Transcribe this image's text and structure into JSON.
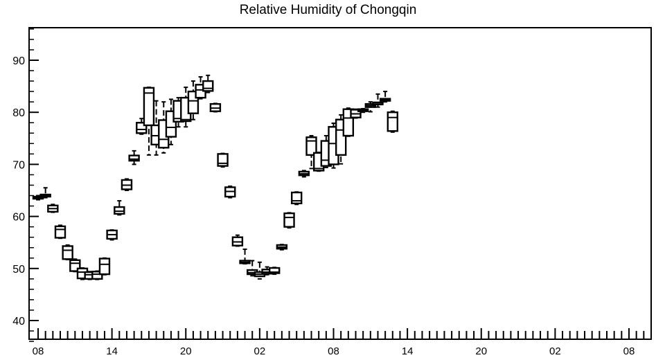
{
  "chart_data": {
    "type": "boxplot",
    "title": "Relative Humidity of Chongqin",
    "xlabel": "",
    "ylabel": "",
    "ylim": [
      36,
      96
    ],
    "xlim": [
      0,
      84
    ],
    "y_ticks": [
      40,
      50,
      60,
      70,
      80,
      90
    ],
    "x_ticks": [
      {
        "x": 1,
        "label": "08"
      },
      {
        "x": 11,
        "label": "14"
      },
      {
        "x": 21,
        "label": "20"
      },
      {
        "x": 31,
        "label": "02"
      },
      {
        "x": 41,
        "label": "08"
      },
      {
        "x": 51,
        "label": "14"
      },
      {
        "x": 61,
        "label": "20"
      },
      {
        "x": 71,
        "label": "02"
      },
      {
        "x": 81,
        "label": "08"
      }
    ],
    "grid": false,
    "series": [
      {
        "boxes": [
          {
            "x": 1,
            "min": 63.2,
            "q1": 63.4,
            "median": 63.6,
            "q3": 63.8,
            "max": 64.0
          },
          {
            "x": 2,
            "min": 63.6,
            "q1": 63.8,
            "median": 64.0,
            "q3": 64.2,
            "max": 65.5
          },
          {
            "x": 3,
            "min": 60.8,
            "q1": 60.9,
            "median": 61.5,
            "q3": 62.1,
            "max": 62.3
          },
          {
            "x": 4,
            "min": 55.8,
            "q1": 55.9,
            "median": 57.5,
            "q3": 58.1,
            "max": 58.3
          },
          {
            "x": 5,
            "min": 51.7,
            "q1": 51.8,
            "median": 53.5,
            "q3": 54.3,
            "max": 54.5
          },
          {
            "x": 6,
            "min": 49.4,
            "q1": 49.5,
            "median": 51.0,
            "q3": 51.6,
            "max": 51.8
          },
          {
            "x": 7,
            "min": 47.9,
            "q1": 48.1,
            "median": 49.3,
            "q3": 50.0,
            "max": 50.1
          },
          {
            "x": 8,
            "min": 47.9,
            "q1": 48.0,
            "median": 48.8,
            "q3": 49.3,
            "max": 49.4
          },
          {
            "x": 9,
            "min": 47.9,
            "q1": 48.0,
            "median": 48.9,
            "q3": 49.4,
            "max": 49.5
          },
          {
            "x": 10,
            "min": 48.8,
            "q1": 48.9,
            "median": 50.8,
            "q3": 51.9,
            "max": 52.0
          },
          {
            "x": 11,
            "min": 55.5,
            "q1": 55.7,
            "median": 56.5,
            "q3": 57.3,
            "max": 57.4
          },
          {
            "x": 12,
            "min": 60.3,
            "q1": 60.5,
            "median": 61.0,
            "q3": 61.8,
            "max": 63.0
          },
          {
            "x": 13,
            "min": 65.0,
            "q1": 65.2,
            "median": 66.0,
            "q3": 67.0,
            "max": 67.2
          },
          {
            "x": 14,
            "min": 70.0,
            "q1": 70.7,
            "median": 71.0,
            "q3": 71.7,
            "max": 72.6
          },
          {
            "x": 15,
            "min": 75.8,
            "q1": 76.0,
            "median": 76.7,
            "q3": 78.0,
            "max": 78.8
          },
          {
            "x": 16,
            "min": 71.8,
            "q1": 77.5,
            "median": 83.7,
            "q3": 84.7,
            "max": 84.8
          },
          {
            "x": 17,
            "min": 71.8,
            "q1": 73.8,
            "median": 75.5,
            "q3": 77.5,
            "max": 82.2
          },
          {
            "x": 18,
            "min": 72.2,
            "q1": 73.2,
            "median": 74.8,
            "q3": 78.5,
            "max": 82.0
          },
          {
            "x": 19,
            "min": 73.8,
            "q1": 75.3,
            "median": 77.1,
            "q3": 80.2,
            "max": 82.5
          },
          {
            "x": 20,
            "min": 77.2,
            "q1": 78.2,
            "median": 78.8,
            "q3": 82.2,
            "max": 82.8
          },
          {
            "x": 21,
            "min": 77.2,
            "q1": 78.3,
            "median": 78.6,
            "q3": 82.8,
            "max": 84.8
          },
          {
            "x": 22,
            "min": 78.6,
            "q1": 79.8,
            "median": 82.2,
            "q3": 84.0,
            "max": 86.0
          },
          {
            "x": 23,
            "min": 82.6,
            "q1": 82.8,
            "median": 84.3,
            "q3": 85.3,
            "max": 86.8
          },
          {
            "x": 24,
            "min": 83.8,
            "q1": 84.1,
            "median": 84.6,
            "q3": 86.0,
            "max": 87.1
          },
          {
            "x": 25,
            "min": 80.1,
            "q1": 80.2,
            "median": 80.8,
            "q3": 81.6,
            "max": 81.7
          },
          {
            "x": 26,
            "min": 69.5,
            "q1": 69.7,
            "median": 70.2,
            "q3": 72.0,
            "max": 72.1
          },
          {
            "x": 27,
            "min": 63.6,
            "q1": 63.8,
            "median": 64.8,
            "q3": 65.6,
            "max": 65.8
          },
          {
            "x": 28,
            "min": 54.3,
            "q1": 54.4,
            "median": 55.1,
            "q3": 56.0,
            "max": 56.4
          },
          {
            "x": 29,
            "min": 50.9,
            "q1": 51.0,
            "median": 51.2,
            "q3": 51.5,
            "max": 53.7
          },
          {
            "x": 30,
            "min": 48.6,
            "q1": 48.9,
            "median": 49.2,
            "q3": 49.7,
            "max": 51.5
          },
          {
            "x": 31,
            "min": 48.0,
            "q1": 48.5,
            "median": 48.9,
            "q3": 49.3,
            "max": 51.2
          },
          {
            "x": 32,
            "min": 48.8,
            "q1": 49.0,
            "median": 49.3,
            "q3": 49.8,
            "max": 50.3
          },
          {
            "x": 33,
            "min": 48.9,
            "q1": 49.1,
            "median": 49.3,
            "q3": 50.1,
            "max": 50.2
          },
          {
            "x": 34,
            "min": 53.6,
            "q1": 53.8,
            "median": 54.1,
            "q3": 54.5,
            "max": 54.6
          },
          {
            "x": 35,
            "min": 57.8,
            "q1": 58.0,
            "median": 59.8,
            "q3": 60.6,
            "max": 60.7
          },
          {
            "x": 36,
            "min": 62.3,
            "q1": 62.5,
            "median": 63.0,
            "q3": 64.6,
            "max": 64.7
          },
          {
            "x": 37,
            "min": 67.6,
            "q1": 67.9,
            "median": 68.2,
            "q3": 68.6,
            "max": 68.8
          },
          {
            "x": 38,
            "min": 69.2,
            "q1": 71.8,
            "median": 74.5,
            "q3": 75.2,
            "max": 75.5
          },
          {
            "x": 39,
            "min": 68.7,
            "q1": 68.8,
            "median": 69.2,
            "q3": 72.2,
            "max": 72.3
          },
          {
            "x": 40,
            "min": 69.4,
            "q1": 69.7,
            "median": 70.8,
            "q3": 74.5,
            "max": 75.5
          },
          {
            "x": 41,
            "min": 69.3,
            "q1": 70.0,
            "median": 74.0,
            "q3": 77.2,
            "max": 77.9
          },
          {
            "x": 42,
            "min": 70.1,
            "q1": 71.8,
            "median": 76.6,
            "q3": 78.6,
            "max": 79.5
          },
          {
            "x": 43,
            "min": 75.4,
            "q1": 75.5,
            "median": 78.9,
            "q3": 80.6,
            "max": 80.8
          },
          {
            "x": 44,
            "min": 78.9,
            "q1": 79.0,
            "median": 79.7,
            "q3": 80.5,
            "max": 80.6
          },
          {
            "x": 45,
            "min": 80.0,
            "q1": 80.2,
            "median": 80.4,
            "q3": 80.6,
            "max": 80.7
          },
          {
            "x": 46,
            "min": 80.1,
            "q1": 81.0,
            "median": 81.3,
            "q3": 81.6,
            "max": 82.0
          },
          {
            "x": 47,
            "min": 81.0,
            "q1": 81.5,
            "median": 81.8,
            "q3": 81.9,
            "max": 83.5
          },
          {
            "x": 48,
            "min": 82.0,
            "q1": 82.2,
            "median": 82.4,
            "q3": 82.6,
            "max": 84.0
          },
          {
            "x": 49,
            "min": 76.2,
            "q1": 76.4,
            "median": 79.0,
            "q3": 80.0,
            "max": 80.2
          }
        ]
      }
    ]
  }
}
